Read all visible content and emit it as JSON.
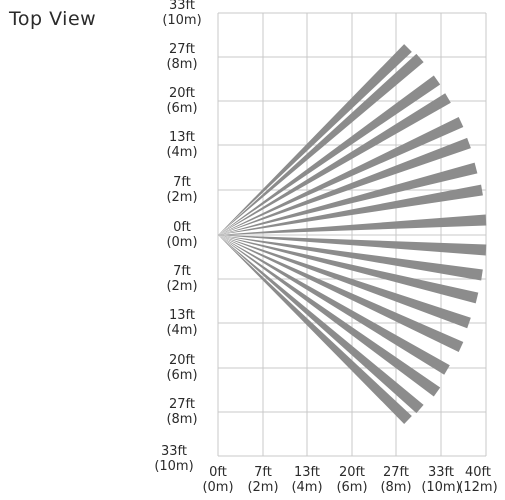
{
  "diagram": {
    "title": "Top View",
    "y_labels": [
      {
        "ft": "33ft",
        "m": "(10m)"
      },
      {
        "ft": "27ft",
        "m": "(8m)"
      },
      {
        "ft": "20ft",
        "m": "(6m)"
      },
      {
        "ft": "13ft",
        "m": "(4m)"
      },
      {
        "ft": "7ft",
        "m": "(2m)"
      },
      {
        "ft": "0ft",
        "m": "(0m)"
      },
      {
        "ft": "7ft",
        "m": "(2m)"
      },
      {
        "ft": "13ft",
        "m": "(4m)"
      },
      {
        "ft": "20ft",
        "m": "(6m)"
      },
      {
        "ft": "27ft",
        "m": "(8m)"
      },
      {
        "ft": "33ft",
        "m": "(10m)"
      }
    ],
    "x_labels": [
      {
        "ft": "0ft",
        "m": "(0m)"
      },
      {
        "ft": "7ft",
        "m": "(2m)"
      },
      {
        "ft": "13ft",
        "m": "(4m)"
      },
      {
        "ft": "20ft",
        "m": "(6m)"
      },
      {
        "ft": "27ft",
        "m": "(8m)"
      },
      {
        "ft": "33ft",
        "m": "(10m)"
      },
      {
        "ft": "40ft",
        "m": "(12m)"
      }
    ],
    "colors": {
      "beam": "#8c8c8c",
      "grid": "#c8c8c8",
      "text": "#2b2b2b"
    }
  }
}
